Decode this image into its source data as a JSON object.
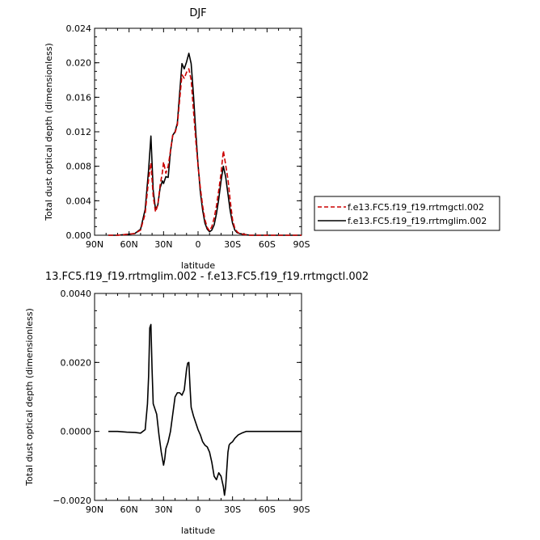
{
  "chart_data": [
    {
      "type": "line",
      "title": "DJF",
      "xlabel": "latitude",
      "ylabel": "Total dust optical depth (dimensionless)",
      "xlim": [
        90,
        -90
      ],
      "ylim": [
        0,
        0.024
      ],
      "xticks": [
        90,
        60,
        30,
        0,
        -30,
        -60,
        -90
      ],
      "xtick_labels": [
        "90N",
        "60N",
        "30N",
        "0",
        "30S",
        "60S",
        "90S"
      ],
      "yticks": [
        0,
        0.004,
        0.008,
        0.012,
        0.016,
        0.02,
        0.024
      ],
      "ytick_labels": [
        "0.000",
        "0.004",
        "0.008",
        "0.012",
        "0.016",
        "0.020",
        "0.024"
      ],
      "legend_position": "outside-right",
      "series": [
        {
          "name": "f.e13.FC5.f19_f19.rrtmgctl.002",
          "color": "#cc0000",
          "dash": "dashed",
          "x": [
            78,
            70,
            62,
            55,
            50,
            46,
            43,
            41,
            39,
            37,
            35,
            33,
            31,
            30,
            28,
            26,
            24,
            22,
            20,
            18,
            16,
            14,
            12,
            10,
            8,
            6,
            4,
            2,
            0,
            -2,
            -4,
            -6,
            -8,
            -10,
            -12,
            -14,
            -16,
            -18,
            -20,
            -22,
            -24,
            -26,
            -28,
            -30,
            -32,
            -34,
            -36,
            -40,
            -45,
            -50,
            -55,
            -60,
            -70,
            -80,
            -90
          ],
          "y": [
            0,
            0,
            0.0001,
            0.0002,
            0.0006,
            0.0025,
            0.0065,
            0.0084,
            0.0045,
            0.0027,
            0.0035,
            0.0058,
            0.0073,
            0.0085,
            0.0072,
            0.008,
            0.0098,
            0.0116,
            0.0119,
            0.0128,
            0.0157,
            0.0186,
            0.0182,
            0.0189,
            0.0193,
            0.018,
            0.0145,
            0.011,
            0.008,
            0.0055,
            0.0034,
            0.0018,
            0.0009,
            0.0005,
            0.001,
            0.002,
            0.0034,
            0.0052,
            0.0072,
            0.0098,
            0.0082,
            0.0065,
            0.004,
            0.0018,
            0.0008,
            0.0004,
            0.0002,
            0.0001,
            0,
            0,
            0,
            0,
            0,
            0,
            0
          ]
        },
        {
          "name": "f.e13.FC5.f19_f19.rrtmglim.002",
          "color": "#000000",
          "dash": "solid",
          "x": [
            78,
            70,
            62,
            55,
            50,
            46,
            43,
            41,
            39,
            37,
            35,
            33,
            31,
            30,
            28,
            26,
            24,
            22,
            20,
            18,
            16,
            14,
            12,
            10,
            8,
            6,
            4,
            2,
            0,
            -2,
            -4,
            -6,
            -8,
            -10,
            -12,
            -14,
            -16,
            -18,
            -20,
            -22,
            -24,
            -26,
            -28,
            -30,
            -32,
            -34,
            -36,
            -40,
            -45,
            -50,
            -55,
            -60,
            -70,
            -80,
            -90
          ],
          "y": [
            0,
            0,
            0.0001,
            0.0002,
            0.0007,
            0.003,
            0.0076,
            0.0115,
            0.0052,
            0.003,
            0.0035,
            0.0055,
            0.0063,
            0.006,
            0.0068,
            0.0067,
            0.0097,
            0.0116,
            0.012,
            0.013,
            0.0165,
            0.0199,
            0.0193,
            0.0201,
            0.0211,
            0.0199,
            0.0163,
            0.012,
            0.0082,
            0.005,
            0.0029,
            0.0014,
            0.0007,
            0.0004,
            0.0006,
            0.0012,
            0.0025,
            0.0042,
            0.0063,
            0.008,
            0.0068,
            0.0048,
            0.0028,
            0.0014,
            0.0006,
            0.0003,
            0.0002,
            0.0001,
            0,
            0,
            0,
            0,
            0,
            0,
            0
          ]
        }
      ]
    },
    {
      "type": "line",
      "title": "13.FC5.f19_f19.rrtmglim.002 - f.e13.FC5.f19_f19.rrtmgctl.002",
      "xlabel": "latitude",
      "ylabel": "Total dust optical depth (dimensionless)",
      "xlim": [
        90,
        -90
      ],
      "ylim": [
        -0.002,
        0.004
      ],
      "xticks": [
        90,
        60,
        30,
        0,
        -30,
        -60,
        -90
      ],
      "xtick_labels": [
        "90N",
        "60N",
        "30N",
        "0",
        "30S",
        "60S",
        "90S"
      ],
      "yticks": [
        -0.002,
        0,
        0.002,
        0.004
      ],
      "ytick_labels": [
        "−0.0020",
        "0.0000",
        "0.0020",
        "0.0040"
      ],
      "series": [
        {
          "name": "",
          "color": "#000000",
          "dash": "solid",
          "x": [
            78,
            70,
            62,
            55,
            50,
            46,
            44,
            43,
            42,
            41,
            40,
            39,
            38,
            36,
            34,
            32,
            30,
            29,
            28,
            26,
            24,
            22,
            20,
            18,
            16,
            14,
            12,
            10,
            9,
            8,
            7,
            6,
            4,
            2,
            0,
            -2,
            -4,
            -6,
            -8,
            -10,
            -12,
            -14,
            -16,
            -18,
            -20,
            -22,
            -23,
            -24,
            -25,
            -26,
            -27,
            -28,
            -30,
            -32,
            -35,
            -38,
            -42,
            -46,
            -50,
            -55,
            -60,
            -70,
            -80,
            -90
          ],
          "y": [
            0,
            0,
            -2e-05,
            -3e-05,
            -5e-05,
            5e-05,
            0.0008,
            0.0016,
            0.003,
            0.0031,
            0.0018,
            0.0008,
            0.0007,
            0.0005,
            -0.0001,
            -0.0006,
            -0.00098,
            -0.0008,
            -0.0005,
            -0.0003,
            0,
            0.0005,
            0.001,
            0.00112,
            0.00112,
            0.00105,
            0.0012,
            0.0018,
            0.00198,
            0.002,
            0.0013,
            0.0007,
            0.00045,
            0.00025,
            5e-05,
            -0.0001,
            -0.0003,
            -0.0004,
            -0.00045,
            -0.0006,
            -0.0009,
            -0.0013,
            -0.0014,
            -0.0012,
            -0.0013,
            -0.0016,
            -0.00185,
            -0.0016,
            -0.0011,
            -0.0006,
            -0.0004,
            -0.00035,
            -0.0003,
            -0.0002,
            -0.0001,
            -5e-05,
            0,
            0,
            0,
            0,
            0,
            0,
            0,
            0
          ]
        }
      ]
    }
  ],
  "legend": {
    "entries": [
      "f.e13.FC5.f19_f19.rrtmgctl.002",
      "f.e13.FC5.f19_f19.rrtmglim.002"
    ]
  }
}
